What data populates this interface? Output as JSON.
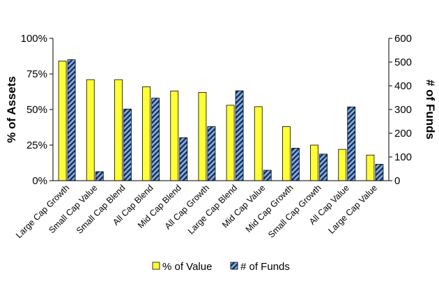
{
  "chart_data": {
    "type": "bar",
    "categories": [
      "Large Cap Growth",
      "Small Cap Value",
      "Small Cap Blend",
      "All Cap Blend",
      "Mid Cap Blend",
      "All Cap Growth",
      "Large Cap Blend",
      "Mid Cap Value",
      "Mid Cap Growth",
      "Small Cap Growth",
      "All Cap Value",
      "Large Cap Value"
    ],
    "series": [
      {
        "name": "% of Value",
        "axis": "left",
        "unit": "%",
        "color": "#ffff33",
        "values": [
          84,
          71,
          71,
          66,
          63,
          62,
          53,
          52,
          38,
          25,
          22,
          18
        ]
      },
      {
        "name": "# of Funds",
        "axis": "right",
        "color": "#6f9fd8",
        "values": [
          510,
          38,
          302,
          348,
          181,
          228,
          379,
          44,
          137,
          112,
          311,
          69
        ]
      }
    ],
    "ylabel": "% of Assets",
    "y2label": "# of Funds",
    "ylim": [
      0,
      100
    ],
    "y2lim": [
      0,
      600
    ],
    "yticks": [
      "0%",
      "25%",
      "50%",
      "75%",
      "100%"
    ],
    "y2ticks": [
      "0",
      "100",
      "200",
      "300",
      "400",
      "500",
      "600"
    ],
    "grid": false,
    "legend": "bottom"
  }
}
